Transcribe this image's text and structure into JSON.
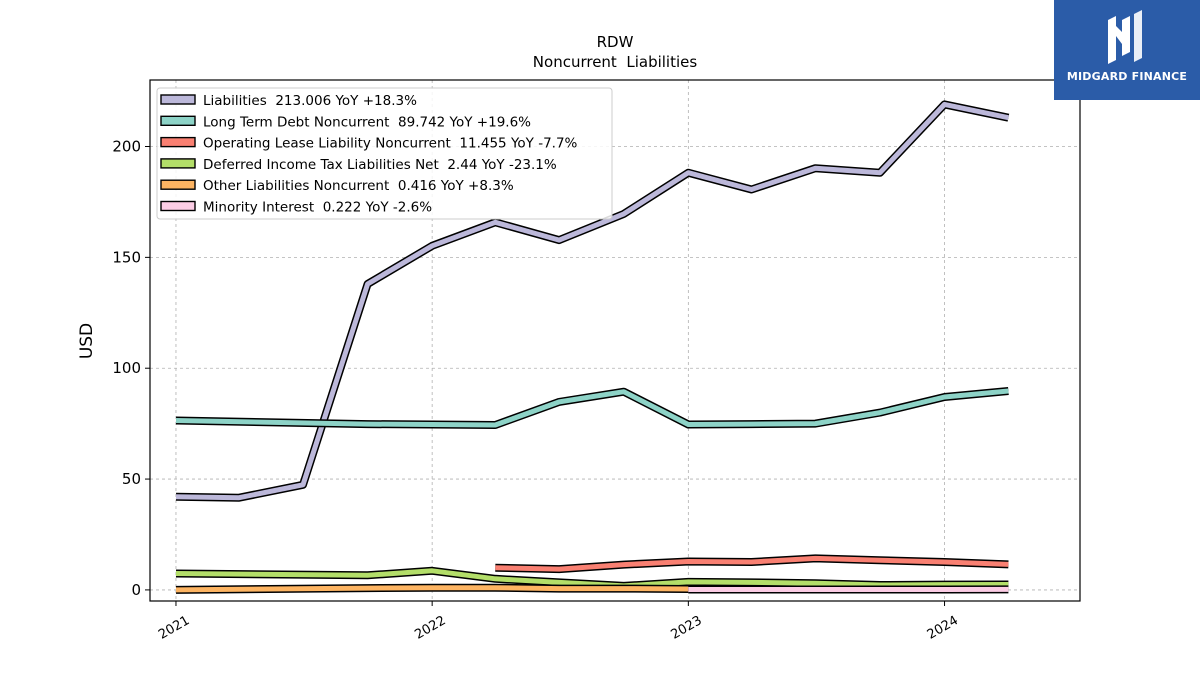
{
  "chart_data": {
    "type": "line",
    "title": "RDW",
    "subtitle": "Noncurrent  Liabilities",
    "xlabel": "",
    "ylabel": "USD",
    "xlim": [
      "2020-11-25",
      "2024-07-12"
    ],
    "ylim": [
      -5,
      230
    ],
    "yticks": [
      0,
      50,
      100,
      150,
      200
    ],
    "xticks": [
      {
        "date": "2021-01-01",
        "label": "2021"
      },
      {
        "date": "2022-01-01",
        "label": "2022"
      },
      {
        "date": "2023-01-01",
        "label": "2023"
      },
      {
        "date": "2024-01-01",
        "label": "2024"
      }
    ],
    "grid": true,
    "legend_position": "top-left",
    "series": [
      {
        "name": "Liabilities",
        "legend": "Liabilities  213.006 YoY +18.3%",
        "color": "#bcb8da",
        "points": [
          [
            "2021-01-01",
            42
          ],
          [
            "2021-04-01",
            41.6
          ],
          [
            "2021-07-01",
            47.4
          ],
          [
            "2021-10-01",
            138
          ],
          [
            "2022-01-01",
            155.2
          ],
          [
            "2022-04-01",
            165.8
          ],
          [
            "2022-07-01",
            157.8
          ],
          [
            "2022-10-01",
            169.6
          ],
          [
            "2023-01-01",
            188.2
          ],
          [
            "2023-04-01",
            180.6
          ],
          [
            "2023-07-01",
            190.2
          ],
          [
            "2023-10-01",
            188.2
          ],
          [
            "2024-01-01",
            219
          ],
          [
            "2024-04-01",
            213
          ]
        ]
      },
      {
        "name": "Long Term Debt Noncurrent",
        "legend": "Long Term Debt Noncurrent  89.742 YoY +19.6%",
        "color": "#8dd3c7",
        "points": [
          [
            "2021-01-01",
            76.4
          ],
          [
            "2021-10-01",
            74.8
          ],
          [
            "2022-01-01",
            74.6
          ],
          [
            "2022-04-01",
            74.4
          ],
          [
            "2022-07-01",
            84.8
          ],
          [
            "2022-10-01",
            89.4
          ],
          [
            "2023-01-01",
            74.6
          ],
          [
            "2023-04-01",
            74.8
          ],
          [
            "2023-07-01",
            75
          ],
          [
            "2023-10-01",
            80
          ],
          [
            "2024-01-01",
            87
          ],
          [
            "2024-04-01",
            89.7
          ]
        ]
      },
      {
        "name": "Operating Lease Liability Noncurrent",
        "legend": "Operating Lease Liability Noncurrent  11.455 YoY -7.7%",
        "color": "#f98072",
        "points": [
          [
            "2022-04-01",
            10
          ],
          [
            "2022-07-01",
            9.4
          ],
          [
            "2022-10-01",
            11.4
          ],
          [
            "2023-01-01",
            12.8
          ],
          [
            "2023-04-01",
            12.6
          ],
          [
            "2023-07-01",
            14.2
          ],
          [
            "2023-10-01",
            13.4
          ],
          [
            "2024-01-01",
            12.6
          ],
          [
            "2024-04-01",
            11.5
          ]
        ]
      },
      {
        "name": "Deferred Income Tax Liabilities Net",
        "legend": "Deferred Income Tax Liabilities Net  2.44 YoY -23.1%",
        "color": "#b3de69",
        "points": [
          [
            "2021-01-01",
            7.4
          ],
          [
            "2021-10-01",
            6.6
          ],
          [
            "2022-01-01",
            8.6
          ],
          [
            "2022-04-01",
            5
          ],
          [
            "2022-07-01",
            3.4
          ],
          [
            "2022-10-01",
            1.8
          ],
          [
            "2023-01-01",
            3.6
          ],
          [
            "2023-04-01",
            3.4
          ],
          [
            "2023-07-01",
            3
          ],
          [
            "2023-10-01",
            2.2
          ],
          [
            "2024-01-01",
            2.4
          ],
          [
            "2024-04-01",
            2.44
          ]
        ]
      },
      {
        "name": "Other Liabilities Noncurrent",
        "legend": "Other Liabilities Noncurrent  0.416 YoY +8.3%",
        "color": "#fdb462",
        "points": [
          [
            "2021-01-01",
            0
          ],
          [
            "2021-10-01",
            0.8
          ],
          [
            "2022-01-01",
            1
          ],
          [
            "2022-04-01",
            1
          ],
          [
            "2022-07-01",
            0.6
          ],
          [
            "2022-10-01",
            0.6
          ],
          [
            "2023-01-01",
            0.4
          ]
        ]
      },
      {
        "name": "Minority Interest",
        "legend": "Minority Interest  0.222 YoY -2.6%",
        "color": "#fccde5",
        "points": [
          [
            "2023-01-01",
            0.2
          ],
          [
            "2023-04-01",
            0.2
          ],
          [
            "2023-07-01",
            0.2
          ],
          [
            "2023-10-01",
            0.2
          ],
          [
            "2024-01-01",
            0.2
          ],
          [
            "2024-04-01",
            0.22
          ]
        ]
      }
    ]
  },
  "logo": {
    "text": "MIDGARD FINANCE",
    "color": "#2b5ca8"
  }
}
